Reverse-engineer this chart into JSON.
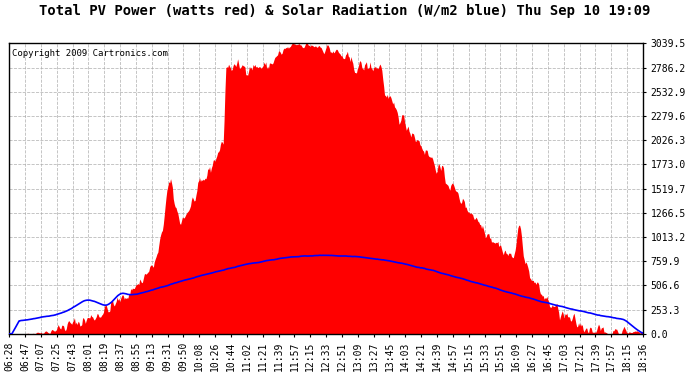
{
  "title": "Total PV Power (watts red) & Solar Radiation (W/m2 blue) Thu Sep 10 19:09",
  "copyright": "Copyright 2009 Cartronics.com",
  "y_ticks": [
    0.0,
    253.3,
    506.6,
    759.9,
    1013.2,
    1266.5,
    1519.7,
    1773.0,
    2026.3,
    2279.6,
    2532.9,
    2786.2,
    3039.5
  ],
  "ylim": [
    0,
    3039.5
  ],
  "x_labels": [
    "06:28",
    "06:47",
    "07:07",
    "07:25",
    "07:43",
    "08:01",
    "08:19",
    "08:37",
    "08:55",
    "09:13",
    "09:31",
    "09:50",
    "10:08",
    "10:26",
    "10:44",
    "11:02",
    "11:21",
    "11:39",
    "11:57",
    "12:15",
    "12:33",
    "12:51",
    "13:09",
    "13:27",
    "13:45",
    "14:03",
    "14:21",
    "14:39",
    "14:57",
    "15:15",
    "15:33",
    "15:51",
    "16:09",
    "16:27",
    "16:45",
    "17:03",
    "17:21",
    "17:39",
    "17:57",
    "18:15",
    "18:36"
  ],
  "bg_color": "#ffffff",
  "plot_bg_color": "#ffffff",
  "grid_color": "#aaaaaa",
  "red_fill_color": "#ff0000",
  "blue_line_color": "#0000ff",
  "title_fontsize": 10,
  "tick_fontsize": 7,
  "copyright_fontsize": 6.5,
  "pv_peak": 3039.5,
  "solar_peak": 820
}
